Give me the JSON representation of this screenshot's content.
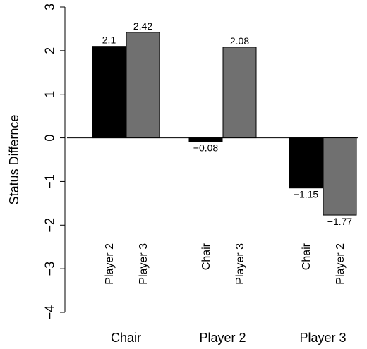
{
  "chart_data": {
    "type": "bar",
    "ylabel": "Status Differnce",
    "ylim": [
      -4,
      3
    ],
    "yticks": [
      -4,
      -3,
      -2,
      -1,
      0,
      1,
      2,
      3
    ],
    "ytick_labels": [
      "−4",
      "−3",
      "−2",
      "−1",
      "0",
      "1",
      "2",
      "3"
    ],
    "grid": false,
    "groups": [
      {
        "label": "Chair",
        "bars": [
          {
            "label": "Player 2",
            "value": 2.1,
            "value_label": "2.1",
            "color": "#000000"
          },
          {
            "label": "Player 3",
            "value": 2.42,
            "value_label": "2.42",
            "color": "#707070"
          }
        ]
      },
      {
        "label": "Player 2",
        "bars": [
          {
            "label": "Chair",
            "value": -0.08,
            "value_label": "−0.08",
            "color": "#000000"
          },
          {
            "label": "Player 3",
            "value": 2.08,
            "value_label": "2.08",
            "color": "#707070"
          }
        ]
      },
      {
        "label": "Player 3",
        "bars": [
          {
            "label": "Chair",
            "value": -1.15,
            "value_label": "−1.15",
            "color": "#000000"
          },
          {
            "label": "Player 2",
            "value": -1.77,
            "value_label": "−1.77",
            "color": "#707070"
          }
        ]
      }
    ]
  }
}
